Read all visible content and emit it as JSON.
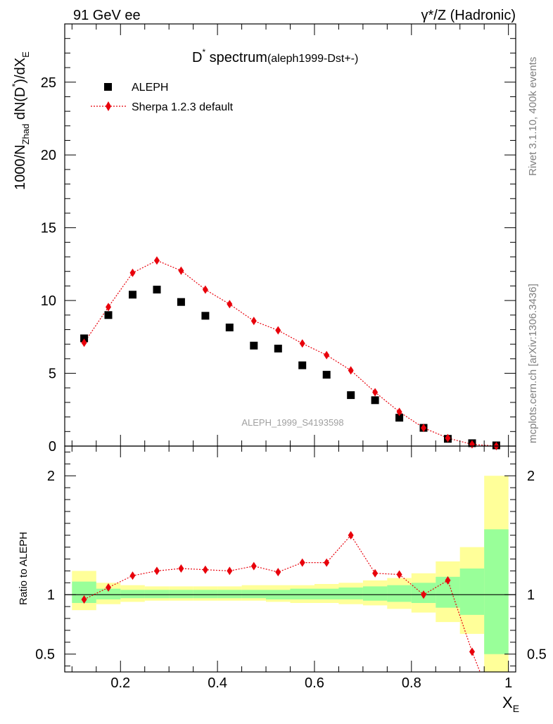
{
  "header": {
    "left": "91 GeV ee",
    "right": "γ*/Z (Hadronic)"
  },
  "side": {
    "rivet": "Rivet 3.1.10,  400k events",
    "mcplots": "mcplots.cern.ch [arXiv:1306.3436]"
  },
  "plot_title": {
    "main": "D",
    "sup": "*",
    "rest": " spectrum",
    "tag": "(aleph1999-Dst+-)"
  },
  "analysis_id": "ALEPH_1999_S4193598",
  "legend": {
    "aleph": "ALEPH",
    "sherpa": "Sherpa 1.2.3 default"
  },
  "ylabel_top": {
    "a": "1000/N",
    "b": "Zhad",
    "c": " dN(D",
    "d": "*",
    "e": ")/dX",
    "f": "E"
  },
  "ylabel_bottom": "Ratio to ALEPH",
  "xlabel": {
    "main": "X",
    "sub": "E"
  },
  "colors": {
    "data": "#000000",
    "mc": "#e8000b",
    "band_yellow": "#ffff99",
    "band_green": "#99ff99",
    "refline": "#000000"
  },
  "chart_data": [
    {
      "type": "scatter",
      "panel": "main",
      "xlim": [
        0.085,
        1.015
      ],
      "ylim": [
        0,
        29
      ],
      "yticks": [
        0,
        5,
        10,
        15,
        20,
        25
      ],
      "x": [
        0.125,
        0.175,
        0.225,
        0.275,
        0.325,
        0.375,
        0.425,
        0.475,
        0.525,
        0.575,
        0.625,
        0.675,
        0.725,
        0.775,
        0.825,
        0.875,
        0.925,
        0.975
      ],
      "series": [
        {
          "name": "ALEPH",
          "values": [
            7.4,
            9.0,
            10.4,
            10.75,
            9.9,
            8.95,
            8.15,
            6.9,
            6.7,
            5.55,
            4.9,
            3.5,
            3.15,
            1.95,
            1.25,
            0.5,
            0.2,
            0.05
          ]
        },
        {
          "name": "Sherpa 1.2.3 default",
          "values": [
            7.1,
            9.55,
            11.9,
            12.75,
            12.05,
            10.75,
            9.75,
            8.6,
            7.95,
            7.05,
            6.25,
            5.2,
            3.7,
            2.35,
            1.25,
            0.55,
            0.12,
            0.0
          ]
        }
      ]
    },
    {
      "type": "line",
      "panel": "ratio",
      "xlim": [
        0.085,
        1.015
      ],
      "ylim": [
        0.35,
        2.25
      ],
      "yticks": [
        0.5,
        1,
        2
      ],
      "xticks": [
        0.2,
        0.4,
        0.6,
        0.8,
        1
      ],
      "xtick_labels": [
        "0.2",
        "0.4",
        "0.6",
        "0.8",
        "1"
      ],
      "ytick_labels": [
        "0.5",
        "1",
        "2"
      ],
      "x": [
        0.125,
        0.175,
        0.225,
        0.275,
        0.325,
        0.375,
        0.425,
        0.475,
        0.525,
        0.575,
        0.625,
        0.675,
        0.725,
        0.775,
        0.825,
        0.875,
        0.925,
        0.975
      ],
      "bins": [
        [
          0.1,
          0.15
        ],
        [
          0.15,
          0.2
        ],
        [
          0.2,
          0.25
        ],
        [
          0.25,
          0.3
        ],
        [
          0.3,
          0.35
        ],
        [
          0.35,
          0.4
        ],
        [
          0.4,
          0.45
        ],
        [
          0.45,
          0.5
        ],
        [
          0.5,
          0.55
        ],
        [
          0.55,
          0.6
        ],
        [
          0.6,
          0.65
        ],
        [
          0.65,
          0.7
        ],
        [
          0.7,
          0.75
        ],
        [
          0.75,
          0.8
        ],
        [
          0.8,
          0.85
        ],
        [
          0.85,
          0.9
        ],
        [
          0.9,
          0.95
        ],
        [
          0.95,
          1.0
        ]
      ],
      "band_yellow": [
        [
          0.87,
          1.2
        ],
        [
          0.92,
          1.1
        ],
        [
          0.94,
          1.08
        ],
        [
          0.95,
          1.07
        ],
        [
          0.95,
          1.07
        ],
        [
          0.95,
          1.07
        ],
        [
          0.95,
          1.07
        ],
        [
          0.95,
          1.08
        ],
        [
          0.94,
          1.08
        ],
        [
          0.93,
          1.08
        ],
        [
          0.93,
          1.09
        ],
        [
          0.92,
          1.1
        ],
        [
          0.91,
          1.12
        ],
        [
          0.88,
          1.14
        ],
        [
          0.85,
          1.18
        ],
        [
          0.77,
          1.28
        ],
        [
          0.67,
          1.4
        ],
        [
          0.35,
          2.0
        ]
      ],
      "band_green": [
        [
          0.93,
          1.11
        ],
        [
          0.96,
          1.05
        ],
        [
          0.97,
          1.04
        ],
        [
          0.97,
          1.04
        ],
        [
          0.97,
          1.04
        ],
        [
          0.97,
          1.04
        ],
        [
          0.97,
          1.04
        ],
        [
          0.97,
          1.04
        ],
        [
          0.96,
          1.04
        ],
        [
          0.96,
          1.05
        ],
        [
          0.96,
          1.05
        ],
        [
          0.96,
          1.06
        ],
        [
          0.95,
          1.07
        ],
        [
          0.94,
          1.08
        ],
        [
          0.93,
          1.1
        ],
        [
          0.89,
          1.15
        ],
        [
          0.83,
          1.22
        ],
        [
          0.5,
          1.55
        ]
      ],
      "series": [
        {
          "name": "Sherpa 1.2.3 default",
          "values": [
            0.96,
            1.06,
            1.16,
            1.2,
            1.22,
            1.21,
            1.2,
            1.24,
            1.19,
            1.27,
            1.27,
            1.5,
            1.18,
            1.17,
            1.0,
            1.12,
            0.52,
            0.0
          ]
        }
      ]
    }
  ]
}
